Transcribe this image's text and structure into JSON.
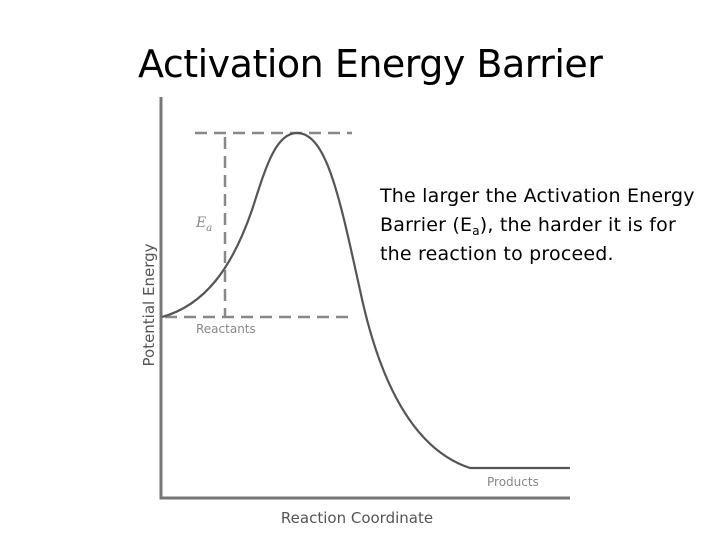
{
  "slide": {
    "title": "Activation Energy Barrier"
  },
  "diagram": {
    "y_axis_label": "Potential Energy",
    "x_axis_label": "Reaction Coordinate",
    "ea_label": "E",
    "ea_label_sub": "a",
    "reactants_label": "Reactants",
    "products_label": "Products"
  },
  "caption": {
    "line1": "The larger the Activation Energy",
    "line2_pre": "Barrier (E",
    "line2_sub": "a",
    "line2_post": "), the harder it is for",
    "line3": "the reaction to proceed."
  }
}
